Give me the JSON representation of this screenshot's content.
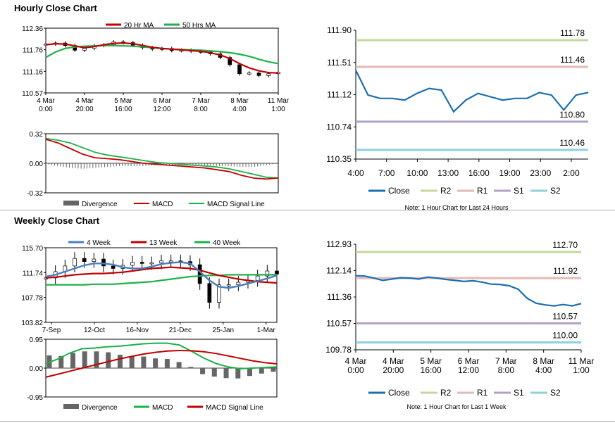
{
  "titles": {
    "hourly": "Hourly Close Chart",
    "weekly": "Weekly Close Chart"
  },
  "colors": {
    "ma1": "#c00000",
    "ma2": "#1db14b",
    "w4": "#4a7fc1",
    "close": "#1a6fae",
    "r2": "#c4d79b",
    "r1": "#e6b8b7",
    "s1": "#b1a0c7",
    "s2": "#8ed1dc",
    "div": "#666666"
  },
  "chart_data": [
    {
      "id": "hourly_price",
      "type": "line",
      "title": "Hourly price with moving averages",
      "x_labels": [
        [
          "4 Mar",
          "0:00"
        ],
        [
          "4 Mar",
          "20:00"
        ],
        [
          "5 Mar",
          "16:00"
        ],
        [
          "6 Mar",
          "12:00"
        ],
        [
          "7 Mar",
          "8:00"
        ],
        [
          "8 Mar",
          "4:00"
        ],
        [
          "11 Mar",
          "1:00"
        ]
      ],
      "ylim": [
        110.57,
        112.36
      ],
      "y_ticks": [
        "112.36",
        "111.76",
        "111.16",
        "110.57"
      ],
      "legend": [
        "20 Hr MA",
        "50 Hrs MA"
      ],
      "series": [
        {
          "name": "20 Hr MA",
          "values": [
            111.9,
            111.93,
            111.92,
            111.87,
            111.82,
            111.85,
            111.9,
            111.94,
            111.95,
            111.93,
            111.88,
            111.83,
            111.8,
            111.78,
            111.76,
            111.74,
            111.72,
            111.68,
            111.62,
            111.52,
            111.38,
            111.26,
            111.18,
            111.13,
            111.12
          ]
        },
        {
          "name": "50 Hrs MA",
          "values": [
            111.55,
            111.7,
            111.8,
            111.84,
            111.86,
            111.87,
            111.88,
            111.88,
            111.87,
            111.86,
            111.84,
            111.82,
            111.8,
            111.78,
            111.77,
            111.76,
            111.75,
            111.73,
            111.71,
            111.68,
            111.64,
            111.58,
            111.5,
            111.43,
            111.38
          ]
        },
        {
          "name": "Close",
          "values": [
            111.92,
            111.95,
            111.88,
            111.75,
            111.8,
            111.88,
            111.9,
            111.98,
            111.96,
            111.89,
            111.82,
            111.78,
            111.8,
            111.74,
            111.75,
            111.72,
            111.7,
            111.65,
            111.55,
            111.35,
            111.1,
            111.12,
            111.05,
            111.1,
            111.14
          ]
        }
      ]
    },
    {
      "id": "hourly_macd",
      "type": "line",
      "ylim": [
        -0.32,
        0.32
      ],
      "y_ticks": [
        "0.32",
        "0.00",
        "-0.32"
      ],
      "legend": [
        "Divergence",
        "MACD",
        "MACD Signal Line"
      ],
      "series": [
        {
          "name": "MACD",
          "values": [
            0.26,
            0.22,
            0.16,
            0.1,
            0.06,
            0.05,
            0.04,
            0.02,
            0.0,
            -0.01,
            -0.02,
            -0.03,
            -0.04,
            -0.05,
            -0.07,
            -0.09,
            -0.13,
            -0.16,
            -0.17,
            -0.16
          ]
        },
        {
          "name": "MACD Signal Line",
          "values": [
            0.27,
            0.25,
            0.22,
            0.17,
            0.12,
            0.09,
            0.07,
            0.05,
            0.03,
            0.01,
            0.0,
            -0.01,
            -0.02,
            -0.03,
            -0.04,
            -0.06,
            -0.09,
            -0.12,
            -0.15,
            -0.16
          ]
        },
        {
          "name": "Divergence",
          "values": [
            -0.01,
            -0.03,
            -0.05,
            -0.06,
            -0.05,
            -0.04,
            -0.03,
            -0.03,
            -0.03,
            -0.02,
            -0.02,
            -0.02,
            -0.02,
            -0.02,
            -0.03,
            -0.03,
            -0.04,
            -0.04,
            -0.02,
            0.0
          ]
        }
      ]
    },
    {
      "id": "pivot_24h",
      "type": "line",
      "x_labels": [
        "4:00",
        "7:00",
        "10:00",
        "13:00",
        "16:00",
        "19:00",
        "23:00",
        "2:00"
      ],
      "ylim": [
        110.35,
        111.9
      ],
      "y_ticks": [
        "111.90",
        "111.51",
        "111.12",
        "110.74",
        "110.35"
      ],
      "levels": [
        {
          "name": "R2",
          "value": 111.78,
          "label": "111.78"
        },
        {
          "name": "R1",
          "value": 111.46,
          "label": "111.46"
        },
        {
          "name": "S1",
          "value": 110.8,
          "label": "110.80"
        },
        {
          "name": "S2",
          "value": 110.46,
          "label": "110.46"
        }
      ],
      "series": [
        {
          "name": "Close",
          "values": [
            111.42,
            111.12,
            111.08,
            111.08,
            111.06,
            111.14,
            111.2,
            111.18,
            110.92,
            111.06,
            111.14,
            111.1,
            111.06,
            111.08,
            111.08,
            111.15,
            111.12,
            110.94,
            111.12,
            111.15
          ]
        }
      ],
      "legend": [
        "Close",
        "R2",
        "R1",
        "S1",
        "S2"
      ],
      "note": "Note: 1 Hour Chart for Last 24 Hours"
    },
    {
      "id": "weekly_price",
      "type": "line",
      "x_labels": [
        "7-Sep",
        "12-Oct",
        "16-Nov",
        "21-Dec",
        "25-Jan",
        "1-Mar"
      ],
      "ylim": [
        103.82,
        115.7
      ],
      "y_ticks": [
        "115.70",
        "111.74",
        "107.78",
        "103.82"
      ],
      "legend": [
        "4 Week",
        "13 Week",
        "40 Week"
      ],
      "series": [
        {
          "name": "4 Week",
          "values": [
            111.1,
            111.4,
            111.9,
            112.4,
            112.9,
            113.2,
            113.2,
            113.0,
            112.6,
            112.4,
            112.4,
            112.7,
            113.1,
            113.3,
            113.4,
            113.2,
            111.9,
            110.5,
            109.5,
            109.3,
            109.6,
            110.0,
            110.4,
            110.8,
            111.3
          ]
        },
        {
          "name": "13 Week",
          "values": [
            110.9,
            111.0,
            111.2,
            111.4,
            111.5,
            111.6,
            111.6,
            111.7,
            111.8,
            112.0,
            112.2,
            112.4,
            112.5,
            112.6,
            112.5,
            112.4,
            112.1,
            111.7,
            111.3,
            111.0,
            110.7,
            110.5,
            110.3,
            110.2,
            110.1
          ]
        },
        {
          "name": "40 Week",
          "values": [
            109.8,
            109.8,
            109.8,
            109.8,
            109.8,
            109.9,
            109.9,
            109.9,
            110.0,
            110.1,
            110.2,
            110.3,
            110.5,
            110.7,
            110.9,
            111.1,
            111.2,
            111.3,
            111.3,
            111.4,
            111.4,
            111.4,
            111.4,
            111.4,
            111.4
          ]
        },
        {
          "name": "Close",
          "values": [
            110.9,
            111.9,
            112.8,
            114.0,
            113.5,
            113.9,
            112.8,
            112.4,
            112.9,
            113.4,
            113.2,
            113.3,
            113.6,
            113.6,
            113.5,
            113.0,
            110.0,
            107.0,
            109.8,
            109.8,
            110.2,
            110.5,
            111.2,
            112.0,
            111.5
          ]
        }
      ]
    },
    {
      "id": "weekly_macd",
      "type": "line",
      "ylim": [
        -0.95,
        0.95
      ],
      "y_ticks": [
        "0.95",
        "0.00",
        "-0.95"
      ],
      "legend": [
        "Divergence",
        "MACD",
        "MACD Signal Line"
      ],
      "series": [
        {
          "name": "MACD",
          "values": [
            0.15,
            0.3,
            0.5,
            0.64,
            0.66,
            0.7,
            0.72,
            0.76,
            0.8,
            0.82,
            0.82,
            0.76,
            0.55,
            0.33,
            0.15,
            0.04,
            -0.02,
            0.0,
            0.02,
            0.04
          ]
        },
        {
          "name": "MACD Signal Line",
          "values": [
            -0.3,
            -0.2,
            -0.1,
            0.0,
            0.1,
            0.2,
            0.3,
            0.38,
            0.46,
            0.52,
            0.56,
            0.58,
            0.57,
            0.54,
            0.48,
            0.4,
            0.32,
            0.24,
            0.18,
            0.14
          ]
        },
        {
          "name": "Divergence",
          "values": [
            0.42,
            0.4,
            0.5,
            0.55,
            0.55,
            0.52,
            0.44,
            0.4,
            0.38,
            0.32,
            0.3,
            0.2,
            0.04,
            -0.2,
            -0.28,
            -0.33,
            -0.34,
            -0.26,
            -0.18,
            -0.12
          ]
        }
      ]
    },
    {
      "id": "pivot_week",
      "type": "line",
      "x_labels": [
        [
          "4 Mar",
          "0:00"
        ],
        [
          "4 Mar",
          "20:00"
        ],
        [
          "5 Mar",
          "16:00"
        ],
        [
          "6 Mar",
          "12:00"
        ],
        [
          "7 Mar",
          "8:00"
        ],
        [
          "8 Mar",
          "4:00"
        ],
        [
          "11 Mar",
          "1:00"
        ]
      ],
      "ylim": [
        109.78,
        112.93
      ],
      "y_ticks": [
        "112.93",
        "112.14",
        "111.36",
        "110.57",
        "109.78"
      ],
      "levels": [
        {
          "name": "R2",
          "value": 112.7,
          "label": "112.70"
        },
        {
          "name": "R1",
          "value": 111.92,
          "label": "111.92"
        },
        {
          "name": "S1",
          "value": 110.57,
          "label": "110.57"
        },
        {
          "name": "S2",
          "value": 110.0,
          "label": "110.00"
        }
      ],
      "series": [
        {
          "name": "Close",
          "values": [
            111.99,
            111.98,
            111.92,
            111.85,
            111.89,
            111.93,
            111.92,
            111.89,
            111.95,
            111.92,
            111.88,
            111.85,
            111.82,
            111.84,
            111.8,
            111.74,
            111.73,
            111.69,
            111.59,
            111.32,
            111.17,
            111.12,
            111.09,
            111.13,
            111.09,
            111.16
          ]
        }
      ],
      "legend": [
        "Close",
        "R2",
        "R1",
        "S1",
        "S2"
      ],
      "note": "Note: 1 Hour Chart for Last 1 Week"
    }
  ]
}
